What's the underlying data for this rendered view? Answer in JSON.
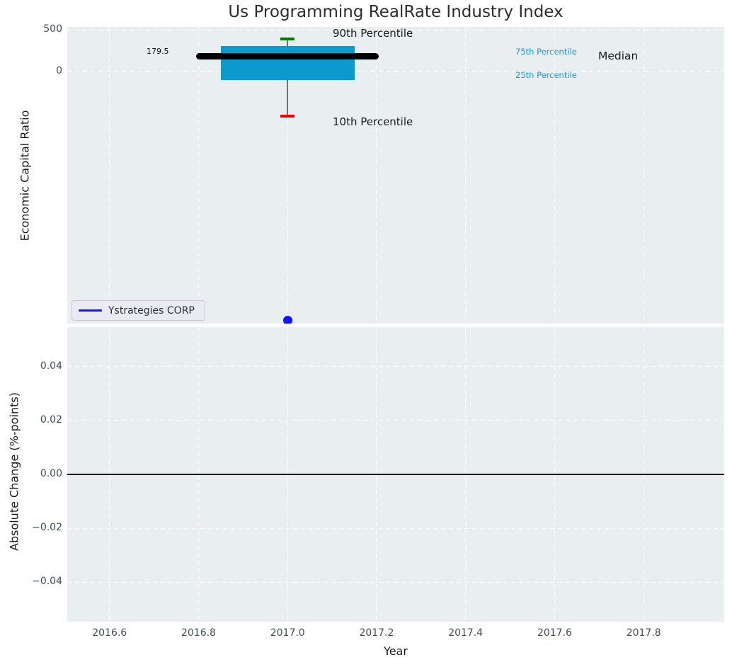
{
  "title": "Us Programming RealRate Industry Index",
  "colors": {
    "axes_bg": "#e9eef0",
    "grid": "#ffffff",
    "tick_label": "#3d4e61",
    "box": "#0a9acc",
    "median_line": "#000000",
    "whisker": "#737373",
    "p90_cap": "#008000",
    "p10_cap": "#f40000",
    "company_blue": "#1414ff",
    "percentile_label": "#2299cc",
    "zero_line": "#000000"
  },
  "legend": {
    "label": "Ystrategies CORP"
  },
  "annotations": {
    "p90_label": "90th Percentile",
    "p10_label": "10th Percentile",
    "p75_label": "75th Percentile",
    "p25_label": "25th Percentile",
    "median_label": "Median",
    "median_value_label": "179.5"
  },
  "top_axis": {
    "ylabel": "Economic Capital Ratio"
  },
  "bottom_axis": {
    "ylabel": "Absolute Change (%-points)",
    "xlabel": "Year"
  },
  "chart_data": [
    {
      "type": "box",
      "title": "Us Programming RealRate Industry Index",
      "ylabel": "Economic Capital Ratio",
      "xlim": [
        2016.505,
        2017.981
      ],
      "ylim": [
        -3020,
        534
      ],
      "grid": true,
      "x_ticks": [
        {
          "v": 2016.6,
          "label": "2016.6"
        },
        {
          "v": 2016.8,
          "label": "2016.8"
        },
        {
          "v": 2017.0,
          "label": "2017.0"
        },
        {
          "v": 2017.2,
          "label": "2017.2"
        },
        {
          "v": 2017.4,
          "label": "2017.4"
        },
        {
          "v": 2017.6,
          "label": "2017.6"
        },
        {
          "v": 2017.8,
          "label": "2017.8"
        }
      ],
      "y_ticks": [
        {
          "v": 500,
          "label": "500"
        },
        {
          "v": 0,
          "label": "0"
        }
      ],
      "box": {
        "x": 2017.0,
        "median": 179.5,
        "p75_estimate": 305,
        "p25_estimate": -100,
        "p90_estimate": 390,
        "p10_estimate": -535,
        "box_width_years": 0.3,
        "median_bar_width_years": 0.41,
        "cap_width_years": 0.032
      },
      "company_point": {
        "name": "Ystrategies CORP",
        "x": 2017.0,
        "y_estimate": -2980
      },
      "legend_position": "lower left"
    },
    {
      "type": "scatter",
      "ylabel": "Absolute Change (%-points)",
      "xlabel": "Year",
      "xlim": [
        2016.505,
        2017.981
      ],
      "ylim": [
        -0.0547,
        0.0547
      ],
      "grid": true,
      "x_ticks": [
        {
          "v": 2016.6,
          "label": "2016.6"
        },
        {
          "v": 2016.8,
          "label": "2016.8"
        },
        {
          "v": 2017.0,
          "label": "2017.0"
        },
        {
          "v": 2017.2,
          "label": "2017.2"
        },
        {
          "v": 2017.4,
          "label": "2017.4"
        },
        {
          "v": 2017.6,
          "label": "2017.6"
        },
        {
          "v": 2017.8,
          "label": "2017.8"
        }
      ],
      "y_ticks": [
        {
          "v": 0.04,
          "label": "0.04"
        },
        {
          "v": 0.02,
          "label": "0.02"
        },
        {
          "v": 0.0,
          "label": "0.00"
        },
        {
          "v": -0.02,
          "label": "−0.02"
        },
        {
          "v": -0.04,
          "label": "−0.04"
        }
      ],
      "zero_line": 0.0,
      "points": []
    }
  ]
}
